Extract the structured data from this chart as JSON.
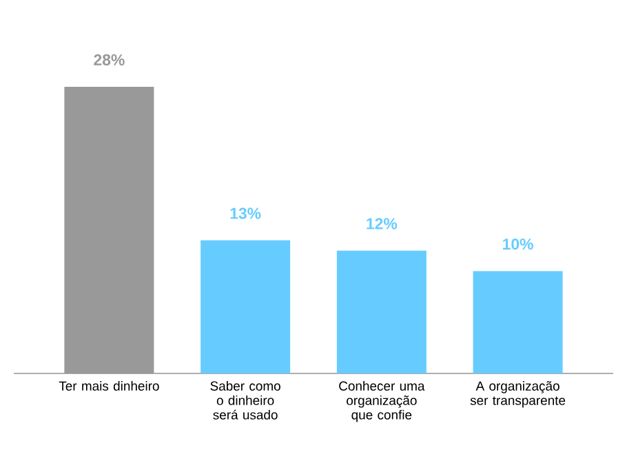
{
  "chart_data": {
    "type": "bar",
    "categories": [
      "Ter mais dinheiro",
      "Saber como o dinheiro será usado",
      "Conhecer uma organização que confie",
      "A organização ser transparente"
    ],
    "values": [
      28,
      13,
      12,
      10
    ],
    "colors": [
      "#999999",
      "#66ccff",
      "#66ccff",
      "#66ccff"
    ],
    "value_labels": [
      "28%",
      "13%",
      "12%",
      "10%"
    ]
  }
}
